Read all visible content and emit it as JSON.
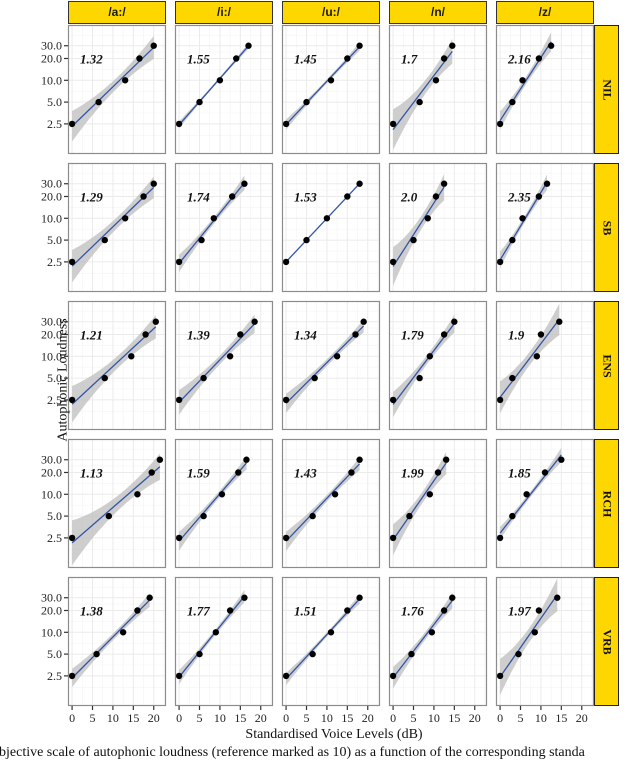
{
  "figure": {
    "ylabel": "Autophonic Loudness",
    "xlabel": "Standardised Voice Levels (dB)",
    "caption": "ubjective scale of autophonic loudness (reference marked as 10) as a function of the corresponding standa",
    "colors": {
      "strip_fill": "#FFD700",
      "line": "#3355A5",
      "ribbon": "#BEBEBE",
      "point": "#000000",
      "grid": "#EBEBEB",
      "panel_border": "#8C8C8C"
    }
  },
  "chart_data": {
    "type": "scatter",
    "title": "",
    "xlabel": "Standardised Voice Levels (dB)",
    "ylabel": "Autophonic Loudness",
    "x_ticks": [
      0,
      5,
      10,
      15,
      20
    ],
    "y_ticks": [
      2.5,
      5.0,
      10.0,
      20.0,
      30.0
    ],
    "y_tick_labels": [
      "2.5",
      "5.0",
      "10.0",
      "20.0",
      "30.0"
    ],
    "xlim": [
      -1,
      23
    ],
    "ylim": [
      0.96,
      58
    ],
    "y_scale": "log",
    "grid": true,
    "fit": "linear regression (log y) with confidence band",
    "columns": [
      "/a:/",
      "/i:/",
      "/u:/",
      "/n/",
      "/z/"
    ],
    "rows": [
      "NIL",
      "SB",
      "ENS",
      "RCH",
      "VRB"
    ],
    "y_values": [
      2.5,
      5,
      10,
      20,
      30
    ],
    "panels": [
      {
        "row": "NIL",
        "col": "/a:/",
        "slope_label": "1.32",
        "x": [
          0,
          6.5,
          13,
          16.5,
          20
        ],
        "band": 1.0
      },
      {
        "row": "NIL",
        "col": "/i:/",
        "slope_label": "1.55",
        "x": [
          0,
          5,
          10,
          14,
          17
        ],
        "band": 0.25
      },
      {
        "row": "NIL",
        "col": "/u:/",
        "slope_label": "1.45",
        "x": [
          0,
          5,
          11,
          15,
          18
        ],
        "band": 0.35
      },
      {
        "row": "NIL",
        "col": "/n/",
        "slope_label": "1.7",
        "x": [
          0,
          6.5,
          10.5,
          12.5,
          14.5
        ],
        "band": 1.2
      },
      {
        "row": "NIL",
        "col": "/z/",
        "slope_label": "2.16",
        "x": [
          0,
          3,
          5.5,
          9.5,
          12.5
        ],
        "band": 0.7
      },
      {
        "row": "SB",
        "col": "/a:/",
        "slope_label": "1.29",
        "x": [
          0,
          8,
          13,
          17.5,
          20
        ],
        "band": 1.0
      },
      {
        "row": "SB",
        "col": "/i:/",
        "slope_label": "1.74",
        "x": [
          0,
          5.5,
          8.5,
          13,
          16
        ],
        "band": 0.6
      },
      {
        "row": "SB",
        "col": "/u:/",
        "slope_label": "1.53",
        "x": [
          0,
          5,
          10,
          15,
          18
        ],
        "band": 0.05
      },
      {
        "row": "SB",
        "col": "/n/",
        "slope_label": "2.0",
        "x": [
          0,
          5,
          8.5,
          10.5,
          12.5
        ],
        "band": 1.2
      },
      {
        "row": "SB",
        "col": "/z/",
        "slope_label": "2.35",
        "x": [
          0,
          3,
          5.5,
          9.5,
          11.5
        ],
        "band": 0.6
      },
      {
        "row": "ENS",
        "col": "/a:/",
        "slope_label": "1.21",
        "x": [
          0,
          8,
          14.5,
          18,
          20.5
        ],
        "band": 1.1
      },
      {
        "row": "ENS",
        "col": "/i:/",
        "slope_label": "1.39",
        "x": [
          0,
          6,
          12.5,
          15,
          18.5
        ],
        "band": 0.8
      },
      {
        "row": "ENS",
        "col": "/u:/",
        "slope_label": "1.34",
        "x": [
          0,
          7,
          12.5,
          17,
          19
        ],
        "band": 0.6
      },
      {
        "row": "ENS",
        "col": "/n/",
        "slope_label": "1.79",
        "x": [
          0,
          6.5,
          9,
          12.5,
          15
        ],
        "band": 0.8
      },
      {
        "row": "ENS",
        "col": "/z/",
        "slope_label": "1.9",
        "x": [
          0,
          3,
          9,
          10,
          14.5
        ],
        "band": 1.2
      },
      {
        "row": "RCH",
        "col": "/a:/",
        "slope_label": "1.13",
        "x": [
          0,
          9,
          16,
          19.5,
          21.5
        ],
        "band": 1.3
      },
      {
        "row": "RCH",
        "col": "/i:/",
        "slope_label": "1.59",
        "x": [
          0,
          6,
          10.5,
          14.5,
          16.5
        ],
        "band": 0.6
      },
      {
        "row": "RCH",
        "col": "/u:/",
        "slope_label": "1.43",
        "x": [
          0,
          6.5,
          12,
          16,
          18
        ],
        "band": 0.6
      },
      {
        "row": "RCH",
        "col": "/n/",
        "slope_label": "1.99",
        "x": [
          0,
          4,
          9,
          11,
          13
        ],
        "band": 1.0
      },
      {
        "row": "RCH",
        "col": "/z/",
        "slope_label": "1.85",
        "x": [
          0,
          3,
          6.5,
          11,
          15
        ],
        "band": 0.5
      },
      {
        "row": "VRB",
        "col": "/a:/",
        "slope_label": "1.38",
        "x": [
          0,
          6,
          12.5,
          16,
          19
        ],
        "band": 0.6
      },
      {
        "row": "VRB",
        "col": "/i:/",
        "slope_label": "1.77",
        "x": [
          0,
          5,
          9,
          12.5,
          16
        ],
        "band": 0.5
      },
      {
        "row": "VRB",
        "col": "/u:/",
        "slope_label": "1.51",
        "x": [
          0,
          6.5,
          11,
          15,
          18
        ],
        "band": 0.4
      },
      {
        "row": "VRB",
        "col": "/n/",
        "slope_label": "1.76",
        "x": [
          0,
          4.5,
          9.5,
          12.5,
          14.5
        ],
        "band": 0.7
      },
      {
        "row": "VRB",
        "col": "/z/",
        "slope_label": "1.97",
        "x": [
          0,
          4.5,
          8.5,
          9.5,
          14
        ],
        "band": 1.3
      }
    ]
  }
}
